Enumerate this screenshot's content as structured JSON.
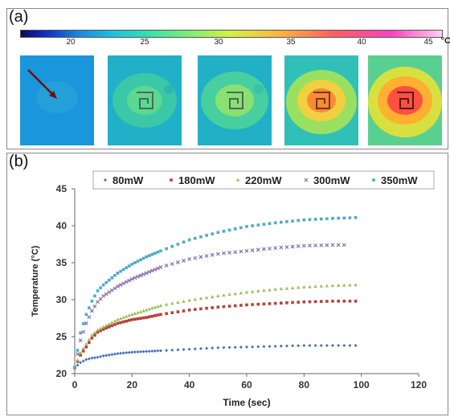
{
  "panel_a": {
    "label": "(a)",
    "colorbar": {
      "ticks": [
        "20",
        "25",
        "30",
        "35",
        "40",
        "45"
      ],
      "unit": "°C"
    },
    "thermograms": [
      {
        "name": "thermogram-1",
        "hot": 0.0
      },
      {
        "name": "thermogram-2",
        "hot": 0.25
      },
      {
        "name": "thermogram-3",
        "hot": 0.4
      },
      {
        "name": "thermogram-4",
        "hot": 0.75
      },
      {
        "name": "thermogram-5",
        "hot": 1.0
      }
    ]
  },
  "panel_b": {
    "label": "(b)"
  },
  "chart_data": {
    "type": "scatter",
    "xlabel": "Time (sec)",
    "ylabel": "Temperature (°C)",
    "xlim": [
      0,
      120
    ],
    "ylim": [
      20,
      45
    ],
    "xticks": [
      "0",
      "20",
      "40",
      "60",
      "80",
      "100",
      "120"
    ],
    "yticks": [
      "20",
      "25",
      "30",
      "35",
      "40",
      "45"
    ],
    "grid": false,
    "legend_position": "top",
    "series": [
      {
        "name": "80mW",
        "color": "#4a6fb5",
        "marker": "diamond",
        "x": [
          0,
          2,
          4,
          6,
          8,
          10,
          15,
          20,
          25,
          30,
          40,
          50,
          60,
          70,
          80,
          90,
          98
        ],
        "y": [
          20.8,
          21.5,
          21.9,
          22.1,
          22.2,
          22.4,
          22.7,
          22.9,
          23.0,
          23.1,
          23.3,
          23.5,
          23.6,
          23.7,
          23.8,
          23.8,
          23.8
        ]
      },
      {
        "name": "180mW",
        "color": "#b8403c",
        "marker": "square",
        "x": [
          0,
          2,
          4,
          6,
          8,
          10,
          15,
          20,
          25,
          30,
          40,
          50,
          60,
          70,
          80,
          90,
          98
        ],
        "y": [
          20.8,
          22.5,
          23.6,
          24.8,
          25.6,
          26.0,
          26.8,
          27.3,
          27.6,
          28.0,
          28.6,
          29.0,
          29.3,
          29.5,
          29.7,
          29.8,
          29.8
        ]
      },
      {
        "name": "220mW",
        "color": "#9bbb59",
        "marker": "triangle",
        "x": [
          0,
          2,
          4,
          6,
          8,
          10,
          15,
          20,
          25,
          30,
          40,
          50,
          60,
          70,
          80,
          90,
          98
        ],
        "y": [
          20.8,
          22.8,
          24.0,
          25.2,
          25.9,
          26.3,
          27.3,
          28.0,
          28.6,
          29.2,
          29.9,
          30.5,
          31.0,
          31.4,
          31.7,
          31.9,
          32.0
        ]
      },
      {
        "name": "300mW",
        "color": "#8064a2",
        "marker": "x",
        "x": [
          0,
          2,
          4,
          6,
          8,
          10,
          15,
          20,
          25,
          30,
          40,
          50,
          60,
          70,
          80,
          90,
          94
        ],
        "y": [
          20.8,
          24.5,
          26.8,
          28.5,
          29.7,
          30.5,
          31.8,
          32.8,
          33.6,
          34.4,
          35.5,
          36.2,
          36.6,
          37.0,
          37.3,
          37.4,
          37.4
        ]
      },
      {
        "name": "350mW",
        "color": "#4bacc6",
        "marker": "square",
        "x": [
          0,
          2,
          4,
          6,
          8,
          10,
          15,
          20,
          25,
          30,
          40,
          50,
          60,
          70,
          80,
          90,
          98
        ],
        "y": [
          20.8,
          25.5,
          28.0,
          29.8,
          31.2,
          32.0,
          33.6,
          34.8,
          35.8,
          36.6,
          38.1,
          39.1,
          39.9,
          40.4,
          40.8,
          41.0,
          41.1
        ]
      }
    ]
  }
}
